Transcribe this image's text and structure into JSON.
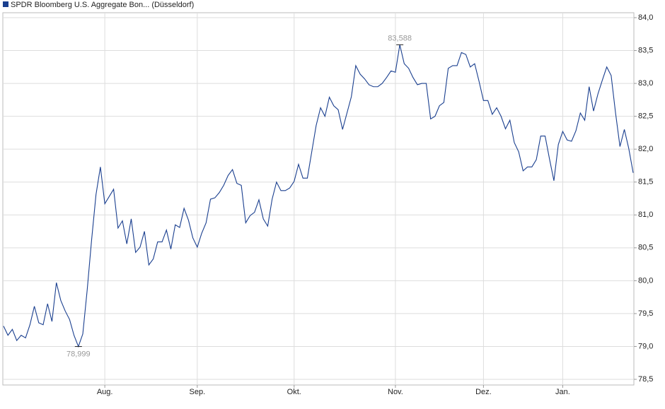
{
  "chart_data": {
    "type": "line",
    "categories": [
      null,
      null,
      null,
      null,
      null,
      null,
      null,
      null,
      null,
      null,
      null,
      null,
      null,
      null,
      null,
      null,
      null,
      null,
      null,
      null,
      null,
      null,
      null,
      "Aug.",
      null,
      null,
      null,
      null,
      null,
      null,
      null,
      null,
      null,
      null,
      null,
      null,
      null,
      null,
      null,
      null,
      null,
      null,
      null,
      null,
      "Sep.",
      null,
      null,
      null,
      null,
      null,
      null,
      null,
      null,
      null,
      null,
      null,
      null,
      null,
      null,
      null,
      null,
      null,
      null,
      null,
      null,
      null,
      "Okt.",
      null,
      null,
      null,
      null,
      null,
      null,
      null,
      null,
      null,
      null,
      null,
      null,
      null,
      null,
      null,
      null,
      null,
      null,
      null,
      null,
      null,
      null,
      "Nov.",
      null,
      null,
      null,
      null,
      null,
      null,
      null,
      null,
      null,
      null,
      null,
      null,
      null,
      null,
      null,
      null,
      null,
      null,
      null,
      "Dez.",
      null,
      null,
      null,
      null,
      null,
      null,
      null,
      null,
      null,
      null,
      null,
      null,
      null,
      null,
      null,
      null,
      null,
      "Jan.",
      null,
      null,
      null,
      null,
      null,
      null,
      null,
      null,
      null,
      null,
      null,
      null,
      null,
      null,
      null,
      null
    ],
    "series": [
      {
        "name": "SPDR Bloomberg U.S. Aggregate Bon... (Düsseldorf)",
        "color": "#1a3f8f",
        "values": [
          79.31,
          79.17,
          79.26,
          79.09,
          79.17,
          79.13,
          79.33,
          79.61,
          79.36,
          79.33,
          79.65,
          79.38,
          79.97,
          79.7,
          79.54,
          79.41,
          79.17,
          78.999,
          79.19,
          79.86,
          80.62,
          81.31,
          81.73,
          81.17,
          81.28,
          81.39,
          80.8,
          80.91,
          80.56,
          80.94,
          80.43,
          80.51,
          80.75,
          80.24,
          80.33,
          80.59,
          80.59,
          80.77,
          80.48,
          80.85,
          80.81,
          81.1,
          80.92,
          80.65,
          80.51,
          80.72,
          80.88,
          81.24,
          81.26,
          81.34,
          81.45,
          81.6,
          81.69,
          81.48,
          81.45,
          80.88,
          80.99,
          81.04,
          81.23,
          80.94,
          80.83,
          81.24,
          81.5,
          81.37,
          81.37,
          81.41,
          81.51,
          81.77,
          81.56,
          81.56,
          81.96,
          82.36,
          82.63,
          82.5,
          82.79,
          82.66,
          82.6,
          82.3,
          82.55,
          82.8,
          83.27,
          83.14,
          83.07,
          82.98,
          82.95,
          82.95,
          83.0,
          83.09,
          83.19,
          83.17,
          83.588,
          83.3,
          83.23,
          83.09,
          82.98,
          83.0,
          83.0,
          82.46,
          82.5,
          82.66,
          82.71,
          83.23,
          83.27,
          83.27,
          83.47,
          83.44,
          83.25,
          83.3,
          83.03,
          82.74,
          82.74,
          82.53,
          82.63,
          82.5,
          82.31,
          82.44,
          82.1,
          81.96,
          81.67,
          81.73,
          81.73,
          81.84,
          82.2,
          82.2,
          81.85,
          81.52,
          82.07,
          82.27,
          82.14,
          82.12,
          82.28,
          82.55,
          82.44,
          82.95,
          82.58,
          82.84,
          83.05,
          83.25,
          83.12,
          82.55,
          82.04,
          82.3,
          82.01,
          81.64
        ]
      }
    ],
    "ylim": [
      78.5,
      84.0
    ],
    "yticks": [
      {
        "value": 78.5,
        "label": "78,5"
      },
      {
        "value": 79.0,
        "label": "79,0"
      },
      {
        "value": 79.5,
        "label": "79,5"
      },
      {
        "value": 80.0,
        "label": "80,0"
      },
      {
        "value": 80.5,
        "label": "80,5"
      },
      {
        "value": 81.0,
        "label": "81,0"
      },
      {
        "value": 81.5,
        "label": "81,5"
      },
      {
        "value": 82.0,
        "label": "82,0"
      },
      {
        "value": 82.5,
        "label": "82,5"
      },
      {
        "value": 83.0,
        "label": "83,0"
      },
      {
        "value": 83.5,
        "label": "83,5"
      },
      {
        "value": 84.0,
        "label": "84,0"
      }
    ],
    "annotations": [
      {
        "label": "83,588",
        "value": 83.588
      },
      {
        "label": "78,999",
        "value": 78.999
      }
    ],
    "grid": true,
    "legend": "top-left"
  }
}
